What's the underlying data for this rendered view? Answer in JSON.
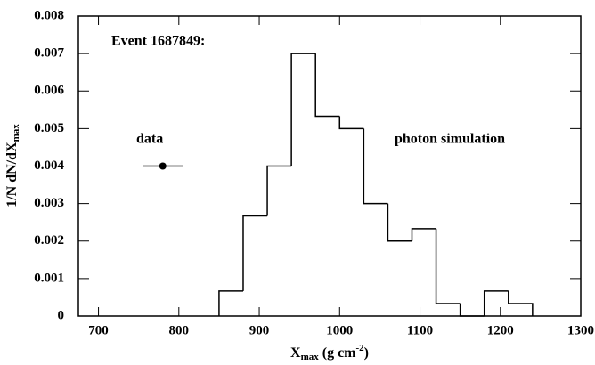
{
  "chart_data": {
    "type": "histogram",
    "annotation": "Event 1687849:",
    "series_label": "photon simulation",
    "x_label": {
      "main": "X",
      "sub": "max",
      "mid": " (g cm",
      "sup": "-2",
      "end": ")"
    },
    "y_label": {
      "main": "1/N dN/dX",
      "sub": "max"
    },
    "bins": [
      850,
      880,
      910,
      940,
      970,
      1000,
      1030,
      1060,
      1090,
      1120,
      1150,
      1180,
      1210,
      1240
    ],
    "values": [
      0.000667,
      0.00267,
      0.004,
      0.007,
      0.00533,
      0.005,
      0.003,
      0.002,
      0.00233,
      0.000333,
      0,
      0.000667,
      0.000333
    ],
    "color": "#000000",
    "points": {
      "name": "data",
      "x": [
        780
      ],
      "values": [
        0.004
      ],
      "xerr": [
        25
      ],
      "color": "#000000"
    },
    "xlim": [
      675,
      1300
    ],
    "xticks": [
      700,
      800,
      900,
      1000,
      1100,
      1200,
      1300
    ],
    "ylim": [
      0,
      0.008
    ],
    "yticks": [
      0,
      0.001,
      0.002,
      0.003,
      0.004,
      0.005,
      0.006,
      0.007,
      0.008
    ]
  }
}
